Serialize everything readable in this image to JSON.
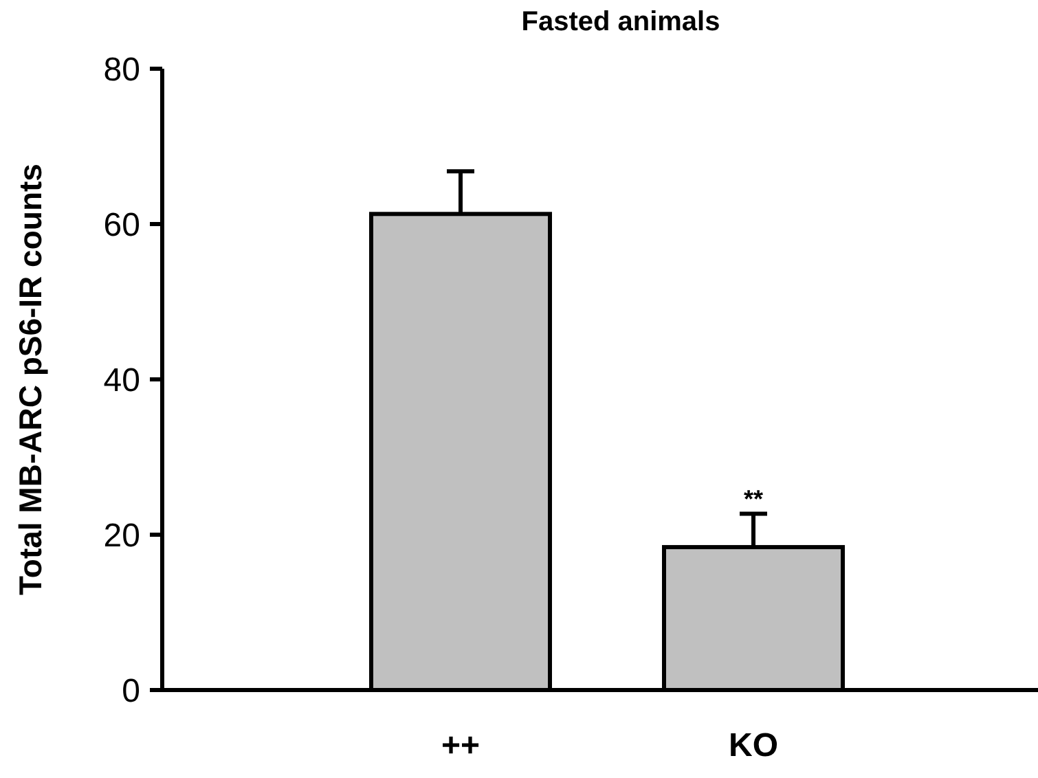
{
  "chart_data": {
    "type": "bar",
    "title": "Fasted animals",
    "ylabel": "Total MB-ARC pS6-IR counts",
    "categories": [
      "++",
      "KO"
    ],
    "values": [
      61.3,
      18.4
    ],
    "errors": [
      5.5,
      4.3
    ],
    "color": "#c0c0c0",
    "ylim": [
      0,
      80
    ],
    "yticks": [
      0,
      20,
      40,
      60,
      80
    ],
    "annotations": [
      {
        "text": "**",
        "x": "KO",
        "y": 23.5
      }
    ],
    "grid": false
  }
}
